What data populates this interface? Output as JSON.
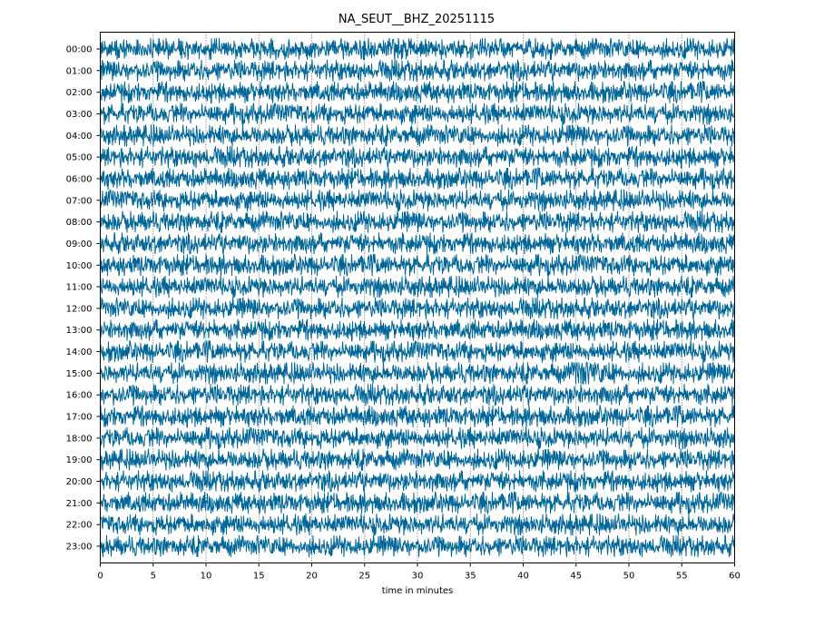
{
  "chart_data": {
    "type": "line",
    "title": "NA_SEUT__BHZ_20251115",
    "xlabel": "time in minutes",
    "ylabel": "",
    "xlim": [
      0,
      60
    ],
    "x_ticks": [
      0,
      5,
      10,
      15,
      20,
      25,
      30,
      35,
      40,
      45,
      50,
      55,
      60
    ],
    "grid": "vertical dotted at every 5 minutes",
    "series_color": "#006699",
    "rows": [
      "00:00",
      "01:00",
      "02:00",
      "03:00",
      "04:00",
      "05:00",
      "06:00",
      "07:00",
      "08:00",
      "09:00",
      "10:00",
      "11:00",
      "12:00",
      "13:00",
      "14:00",
      "15:00",
      "16:00",
      "17:00",
      "18:00",
      "19:00",
      "20:00",
      "21:00",
      "22:00",
      "23:00"
    ],
    "events": [
      {
        "row": "15:00",
        "start_minute": 44.5,
        "end_minute": 49,
        "label": ""
      }
    ]
  }
}
